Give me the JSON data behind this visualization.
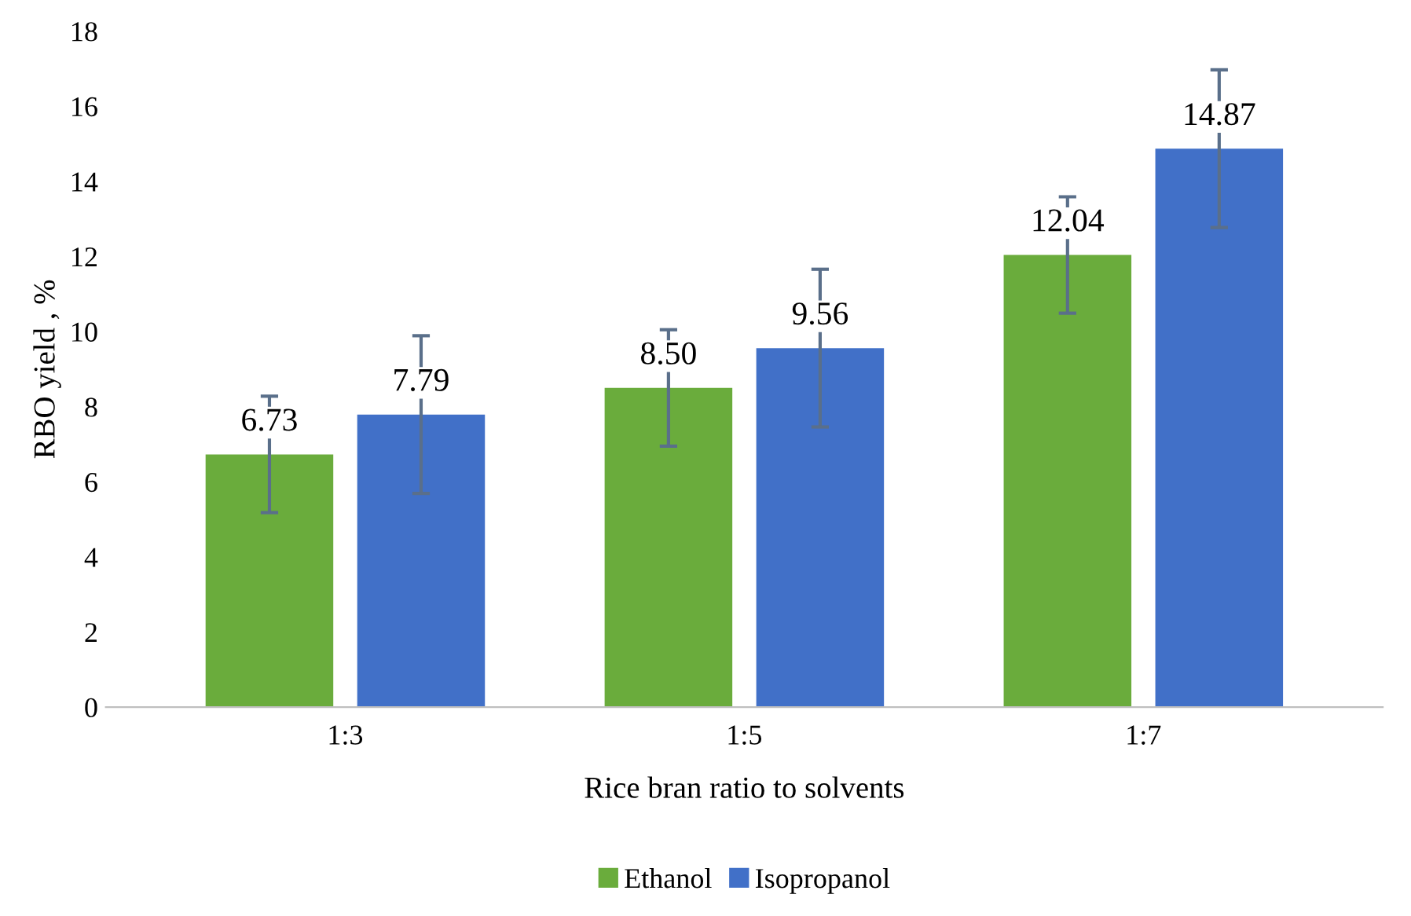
{
  "chart_data": {
    "type": "bar",
    "xlabel": "Rice bran ratio to solvents",
    "ylabel": "RBO yield , %",
    "categories": [
      "1:3",
      "1:5",
      "1:7"
    ],
    "series": [
      {
        "name": "Ethanol",
        "color": "#6aac3c",
        "values": [
          6.73,
          8.5,
          12.04
        ],
        "errors": [
          1.55,
          1.55,
          1.55
        ],
        "value_labels": [
          "6.73",
          "8.50",
          "12.04"
        ]
      },
      {
        "name": "Isopropanol",
        "color": "#4170c8",
        "values": [
          7.79,
          9.56,
          14.87
        ],
        "errors": [
          2.1,
          2.1,
          2.1
        ],
        "value_labels": [
          "7.79",
          "9.56",
          "14.87"
        ]
      }
    ],
    "ylim": [
      0,
      18
    ],
    "yticks": [
      0,
      2,
      4,
      6,
      8,
      10,
      12,
      14,
      16,
      18
    ],
    "grid": false,
    "legend": "bottom"
  }
}
